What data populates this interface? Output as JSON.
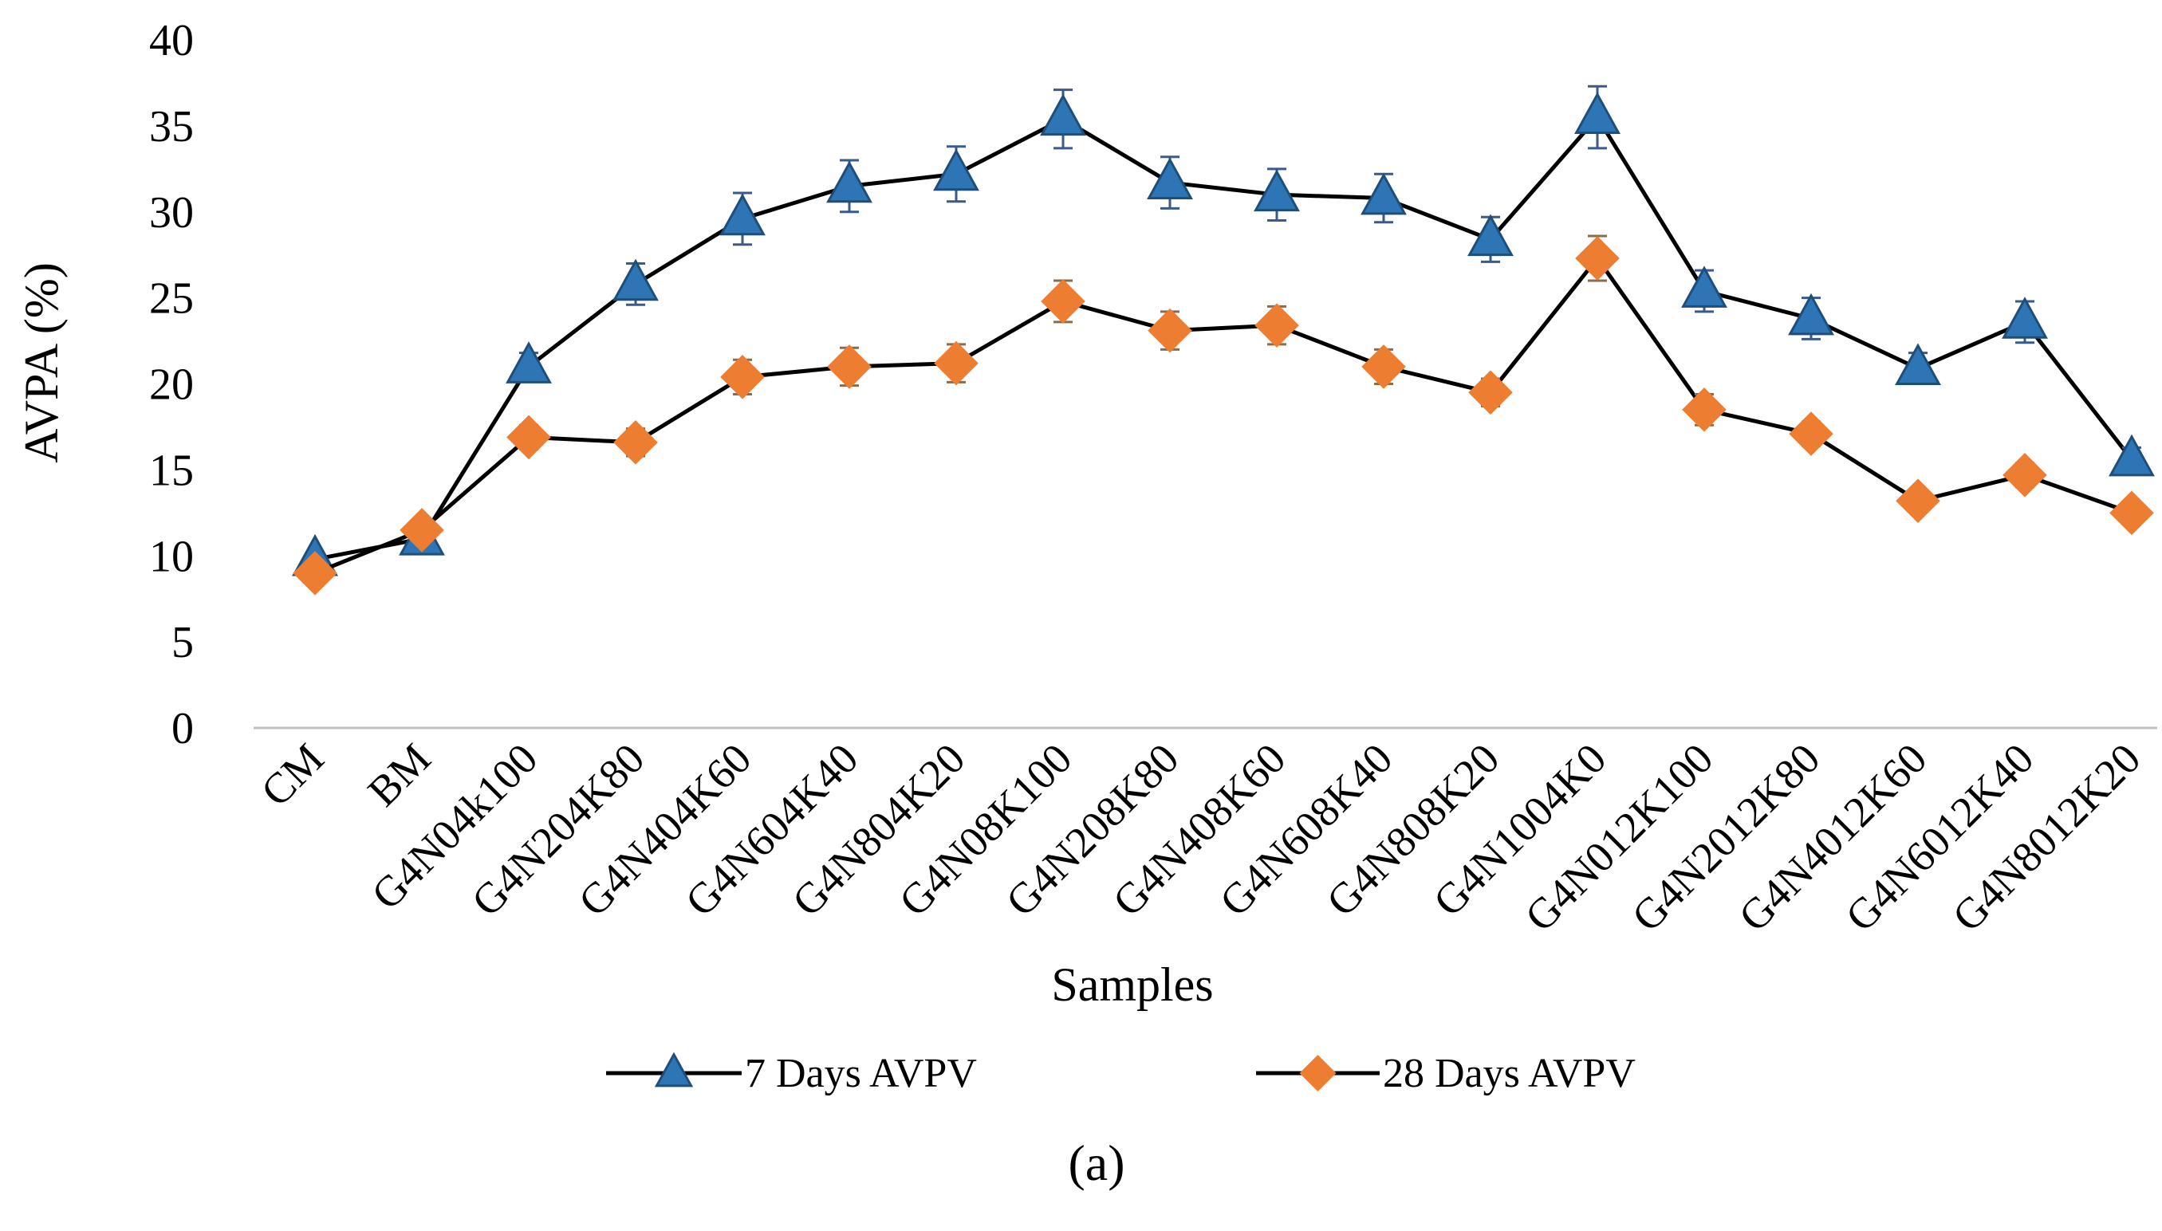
{
  "chart_data": {
    "type": "line",
    "title": "",
    "xlabel": "Samples",
    "ylabel": "AVPA (%)",
    "panel_label": "(a)",
    "ylim": [
      0,
      40
    ],
    "yticks": [
      "0",
      "5",
      "10",
      "15",
      "20",
      "25",
      "30",
      "35",
      "40"
    ],
    "grid": false,
    "legend_position": "bottom",
    "categories": [
      "CM",
      "BM",
      "G4N04k100",
      "G4N204K80",
      "G4N404K60",
      "G4N604K40",
      "G4N804K20",
      "G4N08K100",
      "G4N208K80",
      "G4N408K60",
      "G4N608K40",
      "G4N808K20",
      "G4N1004K0",
      "G4N012K100",
      "G4N2012K80",
      "G4N4012K60",
      "G4N6012K40",
      "G4N8012K20"
    ],
    "series": [
      {
        "name": "7 Days AVPV",
        "marker": "triangle",
        "line_color": "#000000",
        "marker_color": "#2E75B6",
        "values": [
          9.8,
          11.0,
          21.0,
          25.8,
          29.6,
          31.5,
          32.2,
          35.4,
          31.7,
          31.0,
          30.8,
          28.4,
          35.5,
          25.4,
          23.8,
          20.9,
          23.6,
          15.6
        ],
        "errors": [
          0.0,
          0.0,
          0.8,
          1.2,
          1.5,
          1.5,
          1.6,
          1.7,
          1.5,
          1.5,
          1.4,
          1.3,
          1.8,
          1.2,
          1.2,
          0.9,
          1.2,
          0.7
        ]
      },
      {
        "name": "28 Days AVPV",
        "marker": "diamond",
        "line_color": "#000000",
        "marker_color": "#ED7D31",
        "values": [
          9.0,
          11.5,
          16.9,
          16.6,
          20.4,
          21.0,
          21.2,
          24.8,
          23.1,
          23.4,
          21.0,
          19.5,
          27.3,
          18.5,
          17.1,
          13.2,
          14.7,
          12.5
        ],
        "errors": [
          0.0,
          0.0,
          0.7,
          0.8,
          1.0,
          1.1,
          1.1,
          1.2,
          1.1,
          1.1,
          1.0,
          0.8,
          1.3,
          0.9,
          0.7,
          0.6,
          0.7,
          0.5
        ]
      }
    ],
    "colors": {
      "axis": "#BFBFBF",
      "error_bar": "#4472C4"
    }
  }
}
